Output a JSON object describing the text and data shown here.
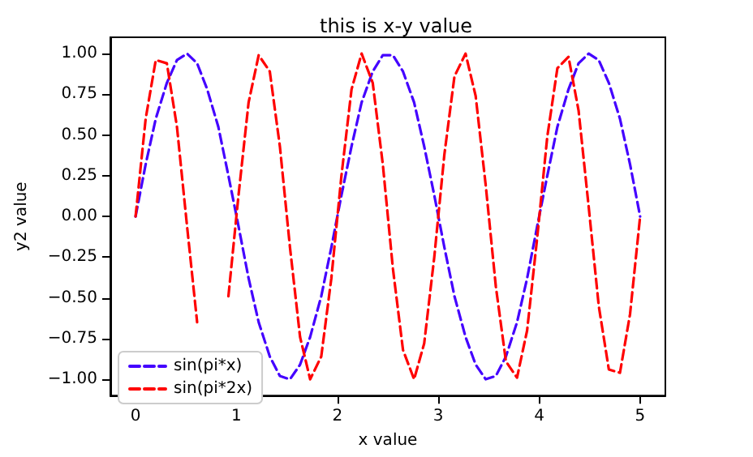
{
  "chart_data": {
    "type": "line",
    "title": "this is x-y value",
    "xlabel": "x value",
    "ylabel": "y2 value",
    "x": [
      0,
      0.1,
      0.2,
      0.31,
      0.41,
      0.51,
      0.61,
      0.71,
      0.82,
      0.92,
      1.02,
      1.12,
      1.22,
      1.33,
      1.43,
      1.53,
      1.63,
      1.73,
      1.84,
      1.94,
      2.04,
      2.14,
      2.24,
      2.35,
      2.45,
      2.55,
      2.65,
      2.76,
      2.86,
      2.96,
      3.06,
      3.16,
      3.27,
      3.37,
      3.47,
      3.57,
      3.67,
      3.78,
      3.88,
      3.98,
      4.08,
      4.18,
      4.29,
      4.39,
      4.49,
      4.59,
      4.69,
      4.8,
      4.9,
      5
    ],
    "series": [
      {
        "name": "sin(pi*x)",
        "color": "#4400ff",
        "values": [
          0,
          0.32,
          0.6,
          0.82,
          0.96,
          1,
          0.94,
          0.78,
          0.55,
          0.25,
          -0.06,
          -0.38,
          -0.65,
          -0.86,
          -0.98,
          -1,
          -0.91,
          -0.74,
          -0.49,
          -0.19,
          0.13,
          0.43,
          0.7,
          0.89,
          0.99,
          0.99,
          0.89,
          0.7,
          0.43,
          0.13,
          -0.19,
          -0.49,
          -0.74,
          -0.91,
          -1,
          -0.98,
          -0.86,
          -0.65,
          -0.38,
          -0.06,
          0.25,
          0.55,
          0.78,
          0.94,
          1,
          0.96,
          0.82,
          0.6,
          0.32,
          0
        ]
      },
      {
        "name": "sin(pi*2x)",
        "color": "#ff0000",
        "values": [
          0,
          0.6,
          0.96,
          0.94,
          0.55,
          -0.06,
          -0.65,
          null,
          null,
          -0.49,
          0.13,
          0.7,
          0.99,
          0.89,
          0.43,
          -0.19,
          -0.74,
          -1,
          -0.86,
          -0.38,
          0.25,
          0.78,
          1,
          0.82,
          0.32,
          -0.32,
          -0.82,
          -1,
          -0.78,
          -0.25,
          0.38,
          0.86,
          1,
          0.74,
          0.19,
          -0.43,
          -0.89,
          -0.99,
          -0.7,
          -0.13,
          0.49,
          0.91,
          0.98,
          0.65,
          0.06,
          -0.55,
          -0.94,
          -0.96,
          -0.6,
          0
        ]
      }
    ],
    "xlim": [
      -0.25,
      5.25
    ],
    "xticks": [
      0,
      1,
      2,
      3,
      4,
      5
    ],
    "ylim": [
      -1.1,
      1.1
    ],
    "yticks": [
      {
        "value": -1,
        "label": "−1.00"
      },
      {
        "value": -0.75,
        "label": "−0.75"
      },
      {
        "value": -0.5,
        "label": "−0.50"
      },
      {
        "value": -0.25,
        "label": "−0.25"
      },
      {
        "value": 0,
        "label": "0.00"
      },
      {
        "value": 0.25,
        "label": "0.25"
      },
      {
        "value": 0.5,
        "label": "0.50"
      },
      {
        "value": 0.75,
        "label": "0.75"
      },
      {
        "value": 1,
        "label": "1.00"
      }
    ],
    "grid": false,
    "legend": "bottom left",
    "marker": "none",
    "line_style": "dashed"
  }
}
